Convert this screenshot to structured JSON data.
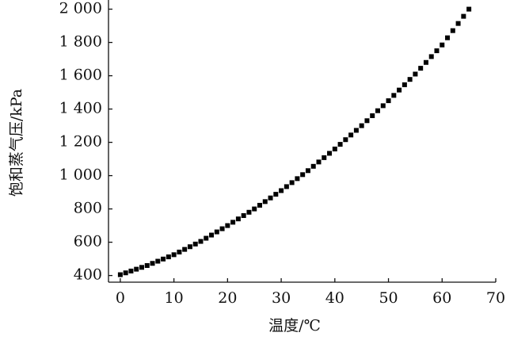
{
  "chart_data": {
    "type": "scatter",
    "xlabel": "温度/℃",
    "ylabel": "饱和蒸气压/kPa",
    "x": [
      0,
      1,
      2,
      3,
      4,
      5,
      6,
      7,
      8,
      9,
      10,
      11,
      12,
      13,
      14,
      15,
      16,
      17,
      18,
      19,
      20,
      21,
      22,
      23,
      24,
      25,
      26,
      27,
      28,
      29,
      30,
      31,
      32,
      33,
      34,
      35,
      36,
      37,
      38,
      39,
      40,
      41,
      42,
      43,
      44,
      45,
      46,
      47,
      48,
      49,
      50,
      51,
      52,
      53,
      54,
      55,
      56,
      57,
      58,
      59,
      60,
      61,
      62,
      63,
      64,
      65
    ],
    "values": [
      405,
      416,
      427,
      438,
      449,
      460,
      473,
      486,
      499,
      512,
      525,
      541,
      557,
      573,
      589,
      605,
      624,
      643,
      662,
      681,
      700,
      720,
      740,
      760,
      780,
      800,
      822,
      844,
      866,
      888,
      910,
      934,
      958,
      982,
      1006,
      1030,
      1056,
      1082,
      1108,
      1134,
      1160,
      1188,
      1216,
      1244,
      1272,
      1300,
      1330,
      1360,
      1390,
      1420,
      1450,
      1482,
      1514,
      1546,
      1578,
      1610,
      1645,
      1680,
      1715,
      1750,
      1785,
      1828,
      1871,
      1914,
      1957,
      2000
    ],
    "color": "#000000",
    "xlim": [
      -2.2,
      70
    ],
    "xticks": [
      0,
      10,
      20,
      30,
      40,
      50,
      60,
      70
    ],
    "ylim": [
      360,
      2055
    ],
    "yticks": [
      400,
      600,
      800,
      {
        "value": 1000,
        "label": "1 000"
      },
      {
        "value": 1200,
        "label": "1 200"
      },
      {
        "value": 1400,
        "label": "1 400"
      },
      {
        "value": 1600,
        "label": "1 600"
      },
      {
        "value": 1800,
        "label": "1 800"
      },
      {
        "value": 2000,
        "label": "2 000"
      }
    ]
  }
}
